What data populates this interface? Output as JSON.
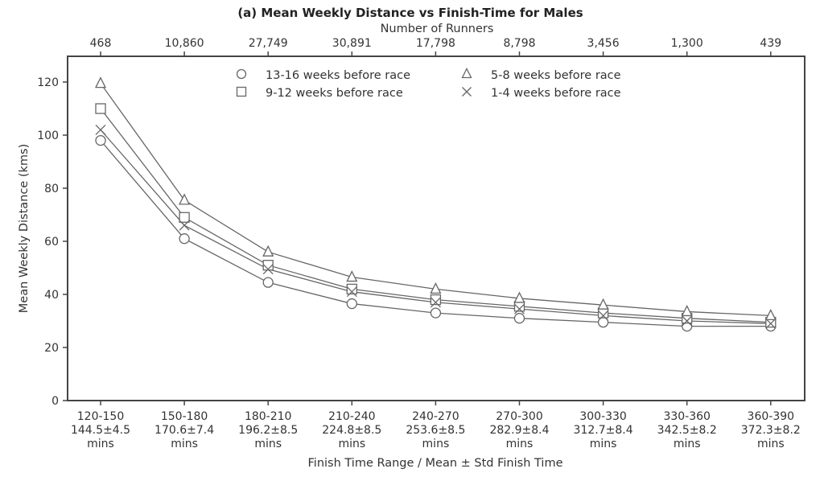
{
  "chart_data": {
    "type": "line",
    "title": "(a) Mean Weekly Distance vs Finish-Time for Males",
    "xlabel": "Finish Time Range / Mean ± Std Finish Time",
    "ylabel": "Mean Weekly Distance (kms)",
    "top_xlabel": "Number of Runners",
    "ylim": [
      0,
      128
    ],
    "yticks": [
      0,
      20,
      40,
      60,
      80,
      100,
      120
    ],
    "grid": false,
    "legend_position": "upper center, 2 columns",
    "categories": [
      "120-150",
      "150-180",
      "180-210",
      "210-240",
      "240-270",
      "270-300",
      "300-330",
      "330-360",
      "360-390"
    ],
    "category_means": [
      "144.5±4.5",
      "170.6±7.4",
      "196.2±8.5",
      "224.8±8.5",
      "253.6±8.5",
      "282.9±8.4",
      "312.7±8.4",
      "342.5±8.2",
      "372.3±8.2"
    ],
    "category_unit": "mins",
    "number_of_runners": [
      "468",
      "10,860",
      "27,749",
      "30,891",
      "17,798",
      "8,798",
      "3,456",
      "1,300",
      "439"
    ],
    "series": [
      {
        "name": "13-16 weeks before race",
        "marker": "circle",
        "values": [
          98,
          61,
          44.5,
          36.5,
          33,
          31,
          29.5,
          28,
          28
        ]
      },
      {
        "name": "9-12 weeks before race",
        "marker": "square",
        "values": [
          110,
          69,
          51,
          42,
          38,
          35.5,
          33,
          31,
          29.5
        ]
      },
      {
        "name": "5-8 weeks before race",
        "marker": "triangle",
        "values": [
          119.5,
          75.5,
          56,
          46.5,
          42,
          38.5,
          36,
          33.5,
          32
        ]
      },
      {
        "name": "1-4 weeks before race",
        "marker": "x",
        "values": [
          102,
          66,
          49.5,
          41,
          37,
          34.5,
          32,
          30,
          29
        ]
      }
    ]
  },
  "colors": {
    "line": "#666666",
    "axis": "#444444",
    "text": "#333333"
  }
}
